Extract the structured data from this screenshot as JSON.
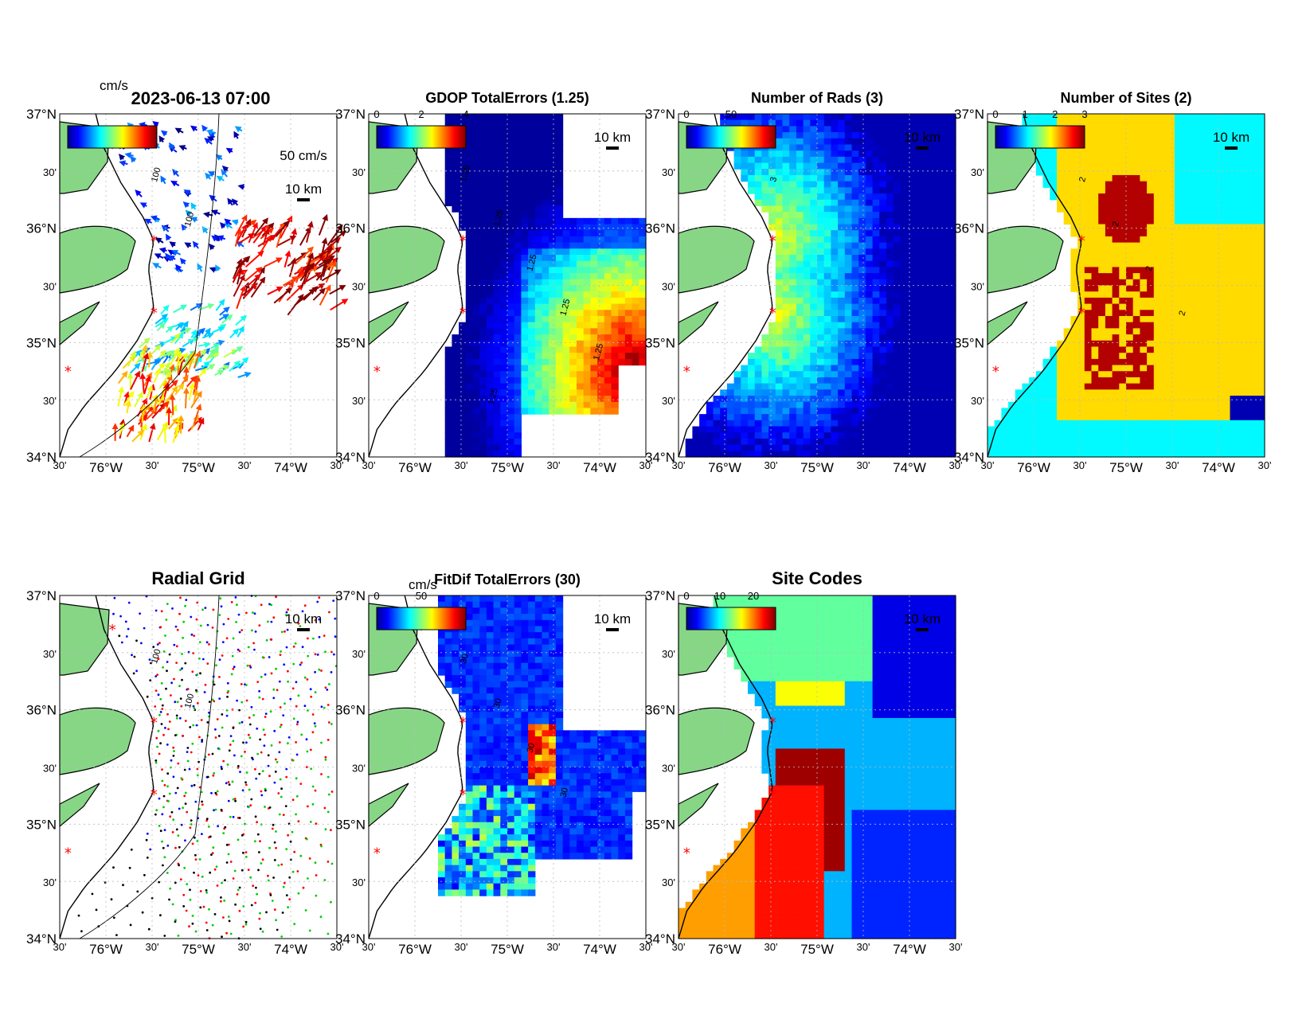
{
  "page": {
    "timestamp": "2023-06-13 07:00",
    "units_label": "cm/s"
  },
  "colors": {
    "land": "#86d686",
    "coast": "#000000",
    "site_marker": "#ff0000",
    "grid_line": "#bbbbbb"
  },
  "axes": {
    "lat_labels": [
      "37°N",
      "30'",
      "36°N",
      "30'",
      "35°N",
      "30'",
      "34°N"
    ],
    "lon_labels": [
      "30'",
      "76°W",
      "30'",
      "75°W",
      "30'",
      "74°W",
      "30'"
    ]
  },
  "panels": [
    {
      "id": "total-vectors",
      "title": "",
      "colorbar": {
        "label": "cm/s",
        "ticks": [],
        "scheme": "jet"
      },
      "scale_labels": [
        "50 cm/s",
        "10 km"
      ],
      "contours": [
        "100",
        "100"
      ],
      "fill": "vectors"
    },
    {
      "id": "gdop-errors",
      "title": "GDOP TotalErrors (1.25)",
      "colorbar": {
        "label": "",
        "ticks": [
          "0",
          "2",
          "4"
        ],
        "scheme": "jet"
      },
      "scale_labels": [
        "10 km"
      ],
      "contours": [
        "1.25",
        "1.25",
        "1.25",
        "1.25",
        "1.25",
        "1.25"
      ],
      "fill": "gdop"
    },
    {
      "id": "num-rads",
      "title": "Number of Rads (3)",
      "colorbar": {
        "label": "",
        "ticks": [
          "0",
          "50"
        ],
        "scheme": "jet"
      },
      "scale_labels": [
        "10 km"
      ],
      "contours": [
        "3"
      ],
      "fill": "rads"
    },
    {
      "id": "num-sites",
      "title": "Number of Sites (2)",
      "colorbar": {
        "label": "",
        "ticks": [
          "0",
          "1",
          "2",
          "3"
        ],
        "scheme": "jet"
      },
      "scale_labels": [
        "10 km"
      ],
      "contours": [
        "2",
        "2",
        "2",
        "2"
      ],
      "fill": "sites"
    },
    {
      "id": "radial-grid",
      "title": "Radial Grid",
      "colorbar": null,
      "scale_labels": [
        "10 km"
      ],
      "contours": [
        "100",
        "100"
      ],
      "fill": "radial"
    },
    {
      "id": "fitdif-errors",
      "title": "FitDif TotalErrors (30)",
      "colorbar": {
        "label": "cm/s",
        "ticks": [
          "0",
          "50"
        ],
        "scheme": "jet"
      },
      "scale_labels": [
        "10 km"
      ],
      "contours": [
        "30",
        "30",
        "30",
        "30"
      ],
      "fill": "fitdif"
    },
    {
      "id": "site-codes",
      "title": "Site Codes",
      "colorbar": {
        "label": "",
        "ticks": [
          "0",
          "10",
          "20"
        ],
        "scheme": "jet"
      },
      "scale_labels": [
        "10 km"
      ],
      "contours": [],
      "fill": "codes"
    }
  ]
}
